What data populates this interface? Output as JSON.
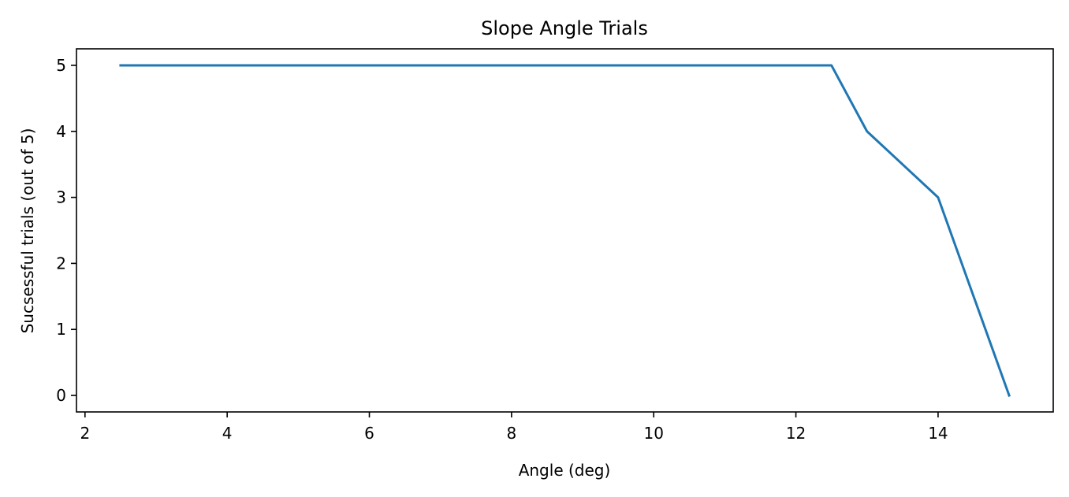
{
  "chart_data": {
    "type": "line",
    "title": "Slope Angle Trials",
    "xlabel": "Angle (deg)",
    "ylabel": "Sucsessful trials (out of 5)",
    "xlim": [
      1.88,
      15.62
    ],
    "ylim": [
      -0.25,
      5.25
    ],
    "xticks": [
      2,
      4,
      6,
      8,
      10,
      12,
      14
    ],
    "yticks": [
      0,
      1,
      2,
      3,
      4,
      5
    ],
    "grid": false,
    "series": [
      {
        "x": [
          2.5,
          3.0,
          3.5,
          4.0,
          4.5,
          5.0,
          5.5,
          6.0,
          6.5,
          7.0,
          7.5,
          8.0,
          8.5,
          9.0,
          9.5,
          10.0,
          10.5,
          11.0,
          11.5,
          12.0,
          12.5,
          13.0,
          13.5,
          14.0,
          14.5,
          15.0
        ],
        "y": [
          5,
          5,
          5,
          5,
          5,
          5,
          5,
          5,
          5,
          5,
          5,
          5,
          5,
          5,
          5,
          5,
          5,
          5,
          5,
          5,
          5,
          4,
          3.5,
          3,
          1.5,
          0
        ],
        "color": "#1f77b4"
      }
    ]
  }
}
